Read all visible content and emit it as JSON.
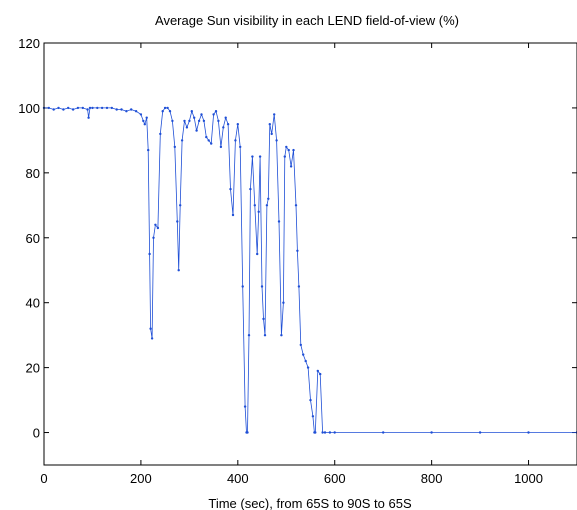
{
  "chart_data": {
    "type": "line",
    "title": "Average Sun visibility in each LEND field-of-view (%)",
    "xlabel": "Time (sec), from 65S to 90S to 65S",
    "ylabel": "",
    "xlim": [
      0,
      1100
    ],
    "ylim": [
      -10,
      120
    ],
    "xticks": [
      0,
      200,
      400,
      600,
      800,
      1000
    ],
    "yticks": [
      0,
      20,
      40,
      60,
      80,
      100,
      120
    ],
    "grid": false,
    "legend": "none",
    "line_color": "#1f4fd6",
    "series": [
      {
        "x": [
          0,
          10,
          20,
          30,
          40,
          50,
          60,
          70,
          80,
          90,
          92,
          95,
          100,
          110,
          120,
          130,
          140,
          150,
          160,
          170,
          180,
          190,
          200,
          205,
          208,
          212,
          215,
          218,
          220,
          223,
          226,
          230,
          235,
          240,
          245,
          250,
          255,
          260,
          265,
          270,
          275,
          278,
          281,
          285,
          290,
          295,
          300,
          305,
          310,
          315,
          320,
          325,
          330,
          335,
          340,
          345,
          350,
          355,
          360,
          365,
          370,
          375,
          380,
          385,
          390,
          395,
          400,
          405,
          410,
          415,
          418,
          420,
          423,
          426,
          430,
          435,
          440,
          443,
          446,
          450,
          453,
          456,
          460,
          463,
          466,
          470,
          475,
          480,
          485,
          490,
          494,
          497,
          500,
          505,
          510,
          515,
          520,
          523,
          526,
          530,
          535,
          540,
          545,
          550,
          555,
          558,
          560,
          565,
          570,
          575,
          580,
          590,
          600,
          700,
          800,
          900,
          1000,
          1100
        ],
        "values": [
          100,
          100,
          99.5,
          100,
          99.5,
          100,
          99.5,
          100,
          100,
          99.5,
          97,
          100,
          100,
          100,
          100,
          100,
          100,
          99.5,
          99.5,
          99,
          99.5,
          99,
          98,
          96,
          95,
          97,
          87,
          55,
          32,
          29,
          60,
          64,
          63,
          92,
          99,
          100,
          100,
          99,
          96,
          88,
          65,
          50,
          70,
          90,
          96,
          94,
          96,
          99,
          97,
          93,
          96,
          98,
          96,
          91,
          90,
          89,
          98,
          99,
          96,
          88,
          94,
          97,
          95,
          75,
          67,
          90,
          95,
          88,
          45,
          8,
          0,
          0,
          30,
          75,
          85,
          70,
          55,
          68,
          85,
          45,
          35,
          30,
          70,
          72,
          95,
          92,
          98,
          90,
          65,
          30,
          40,
          85,
          88,
          87,
          82,
          87,
          70,
          56,
          45,
          27,
          24,
          22,
          20,
          10,
          5,
          0,
          0,
          19,
          18,
          0,
          0,
          0,
          0,
          0,
          0,
          0,
          0,
          0
        ]
      }
    ]
  }
}
